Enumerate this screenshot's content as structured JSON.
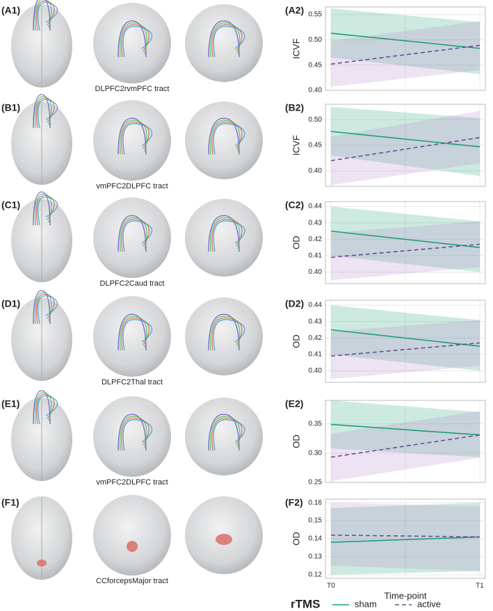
{
  "brain_panels": [
    {
      "label": "(A1)",
      "tract": "DLPFC2rvmPFC tract"
    },
    {
      "label": "(B1)",
      "tract": "vmPFC2DLPFC tract"
    },
    {
      "label": "(C1)",
      "tract": "DLPFC2Caud tract"
    },
    {
      "label": "(D1)",
      "tract": "DLPFC2Thal tract"
    },
    {
      "label": "(E1)",
      "tract": "vmPFC2DLPFC tract"
    },
    {
      "label": "(F1)",
      "tract": "CCforcepsMajor tract"
    }
  ],
  "legend": {
    "title": "rTMS"
  },
  "chart_data": [
    {
      "type": "line",
      "panel": "(A2)",
      "y_label": "ICVF",
      "ylim": [
        0.4,
        0.565
      ],
      "yticks": [
        {
          "value": 0.4,
          "label": "0.40"
        },
        0.45,
        {
          "value": 0.5,
          "label": "0.50"
        },
        0.55
      ],
      "grid": true,
      "series": [
        {
          "name": "sham",
          "color": "#1b9e77",
          "fill": "#1b9e77",
          "dash": false,
          "values": [
            0.513,
            0.483
          ],
          "lower": [
            0.465,
            0.432
          ],
          "upper": [
            0.562,
            0.535
          ]
        },
        {
          "name": "active",
          "color": "#6a4c93",
          "fill": "#b27fc7",
          "dash": true,
          "values": [
            0.452,
            0.489
          ],
          "lower": [
            0.407,
            0.44
          ],
          "upper": [
            0.498,
            0.537
          ]
        }
      ]
    },
    {
      "type": "line",
      "panel": "(B2)",
      "y_label": "ICVF",
      "ylim": [
        0.37,
        0.53
      ],
      "yticks": [
        {
          "value": 0.4,
          "label": "0.40"
        },
        0.45,
        {
          "value": 0.5,
          "label": "0.50"
        }
      ],
      "grid": true,
      "series": [
        {
          "name": "sham",
          "color": "#1b9e77",
          "fill": "#1b9e77",
          "dash": false,
          "values": [
            0.477,
            0.447
          ],
          "lower": [
            0.43,
            0.39
          ],
          "upper": [
            0.525,
            0.503
          ]
        },
        {
          "name": "active",
          "color": "#6a4c93",
          "fill": "#b27fc7",
          "dash": true,
          "values": [
            0.42,
            0.465
          ],
          "lower": [
            0.372,
            0.415
          ],
          "upper": [
            0.467,
            0.517
          ]
        }
      ]
    },
    {
      "type": "line",
      "panel": "(C2)",
      "y_label": "OD",
      "ylim": [
        0.393,
        0.443
      ],
      "yticks": [
        {
          "value": 0.4,
          "label": "0.40"
        },
        0.41,
        0.42,
        0.43,
        0.44
      ],
      "grid": true,
      "series": [
        {
          "name": "sham",
          "color": "#1b9e77",
          "fill": "#1b9e77",
          "dash": false,
          "values": [
            0.425,
            0.415
          ],
          "lower": [
            0.41,
            0.4
          ],
          "upper": [
            0.44,
            0.431
          ]
        },
        {
          "name": "active",
          "color": "#6a4c93",
          "fill": "#b27fc7",
          "dash": true,
          "values": [
            0.409,
            0.417
          ],
          "lower": [
            0.395,
            0.403
          ],
          "upper": [
            0.424,
            0.431
          ]
        }
      ]
    },
    {
      "type": "line",
      "panel": "(D2)",
      "y_label": "OD",
      "ylim": [
        0.393,
        0.443
      ],
      "yticks": [
        {
          "value": 0.4,
          "label": "0.40"
        },
        0.41,
        0.42,
        0.43,
        0.44
      ],
      "grid": true,
      "series": [
        {
          "name": "sham",
          "color": "#1b9e77",
          "fill": "#1b9e77",
          "dash": false,
          "values": [
            0.425,
            0.415
          ],
          "lower": [
            0.41,
            0.4
          ],
          "upper": [
            0.44,
            0.431
          ]
        },
        {
          "name": "active",
          "color": "#6a4c93",
          "fill": "#b27fc7",
          "dash": true,
          "values": [
            0.409,
            0.417
          ],
          "lower": [
            0.395,
            0.403
          ],
          "upper": [
            0.424,
            0.431
          ]
        }
      ]
    },
    {
      "type": "line",
      "panel": "(E2)",
      "y_label": "OD",
      "ylim": [
        0.25,
        0.39
      ],
      "yticks": [
        0.25,
        {
          "value": 0.3,
          "label": "0.30"
        },
        0.35
      ],
      "grid": true,
      "series": [
        {
          "name": "sham",
          "color": "#1b9e77",
          "fill": "#1b9e77",
          "dash": false,
          "values": [
            0.349,
            0.331
          ],
          "lower": [
            0.308,
            0.293
          ],
          "upper": [
            0.39,
            0.37
          ]
        },
        {
          "name": "active",
          "color": "#6a4c93",
          "fill": "#b27fc7",
          "dash": true,
          "values": [
            0.293,
            0.331
          ],
          "lower": [
            0.252,
            0.292
          ],
          "upper": [
            0.333,
            0.372
          ]
        }
      ]
    },
    {
      "type": "line",
      "panel": "(F2)",
      "y_label": "OD",
      "x_label": "Time-point",
      "categories": [
        "T0",
        "T1"
      ],
      "ylim": [
        0.118,
        0.162
      ],
      "yticks": [
        0.12,
        0.13,
        0.14,
        0.15,
        0.16
      ],
      "grid": true,
      "series": [
        {
          "name": "sham",
          "color": "#1b9e77",
          "fill": "#1b9e77",
          "dash": false,
          "values": [
            0.138,
            0.141
          ],
          "lower": [
            0.12,
            0.122
          ],
          "upper": [
            0.157,
            0.16
          ]
        },
        {
          "name": "active",
          "color": "#6a4c93",
          "fill": "#b27fc7",
          "dash": true,
          "values": [
            0.142,
            0.141
          ],
          "lower": [
            0.125,
            0.122
          ],
          "upper": [
            0.16,
            0.158
          ]
        }
      ]
    }
  ]
}
